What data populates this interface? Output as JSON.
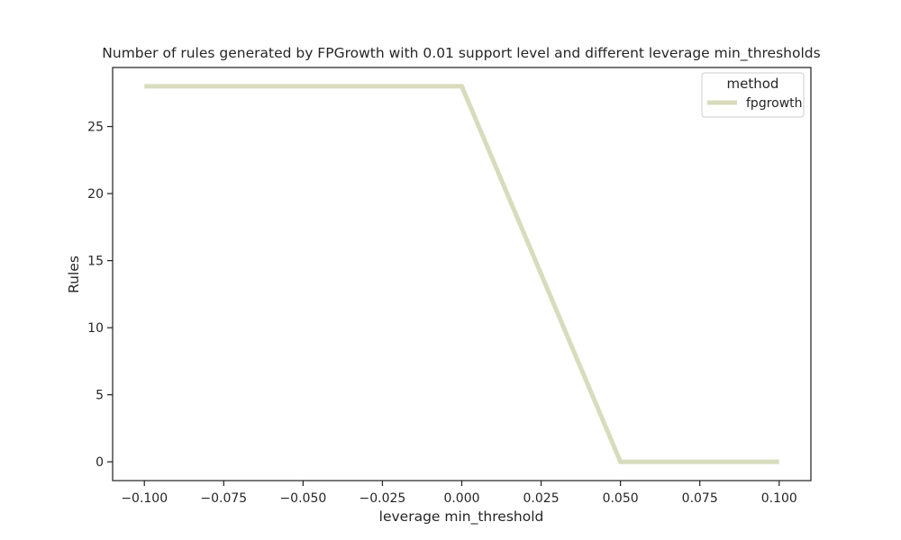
{
  "chart_data": {
    "type": "line",
    "title": "Number of rules generated by FPGrowth with 0.01 support level and different leverage min_thresholds",
    "xlabel": "leverage min_threshold",
    "ylabel": "Rules",
    "x": [
      -0.1,
      -0.075,
      -0.05,
      -0.025,
      0.0,
      0.025,
      0.05,
      0.075,
      0.1
    ],
    "xlim": [
      -0.11,
      0.11
    ],
    "ylim": [
      -1.4,
      29.4
    ],
    "xticks": [
      -0.1,
      -0.075,
      -0.05,
      -0.025,
      0.0,
      0.025,
      0.05,
      0.075,
      0.1
    ],
    "xtick_labels": [
      "−0.100",
      "−0.075",
      "−0.050",
      "−0.025",
      "0.000",
      "0.025",
      "0.050",
      "0.075",
      "0.100"
    ],
    "yticks": [
      0,
      5,
      10,
      15,
      20,
      25
    ],
    "ytick_labels": [
      "0",
      "5",
      "10",
      "15",
      "20",
      "25"
    ],
    "grid": false,
    "series": [
      {
        "name": "fpgrowth",
        "color": "#d8dcbd",
        "values": [
          28,
          28,
          28,
          28,
          28,
          14,
          0,
          0,
          0
        ]
      }
    ],
    "legend": {
      "title": "method",
      "placement": "top-right"
    }
  }
}
